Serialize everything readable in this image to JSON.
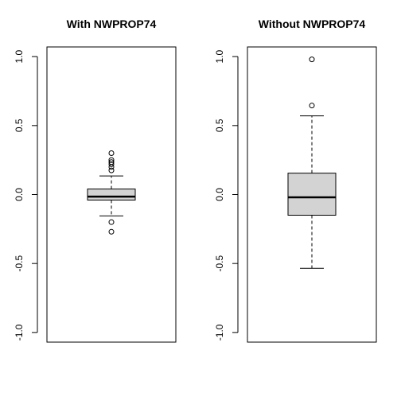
{
  "chart_data": [
    {
      "type": "box",
      "title": "With NWPROP74",
      "xlabel": "",
      "ylabel": "",
      "ylim": [
        -1.07,
        1.07
      ],
      "yticks": [
        -1.0,
        -0.5,
        0.0,
        0.5,
        1.0
      ],
      "ytick_labels": [
        "-1.0",
        "-0.5",
        "0.0",
        "0.5",
        "1.0"
      ],
      "box": {
        "whisker_low": -0.155,
        "q1": -0.04,
        "median": -0.015,
        "q3": 0.04,
        "whisker_high": 0.135,
        "outliers": [
          0.3,
          0.25,
          0.235,
          0.22,
          0.2,
          0.175,
          -0.2,
          -0.27
        ]
      },
      "fill": "#d3d3d3",
      "grid": false
    },
    {
      "type": "box",
      "title": "Without NWPROP74",
      "xlabel": "",
      "ylabel": "",
      "ylim": [
        -1.07,
        1.07
      ],
      "yticks": [
        -1.0,
        -0.5,
        0.0,
        0.5,
        1.0
      ],
      "ytick_labels": [
        "-1.0",
        "-0.5",
        "0.0",
        "0.5",
        "1.0"
      ],
      "box": {
        "whisker_low": -0.535,
        "q1": -0.15,
        "median": -0.02,
        "q3": 0.155,
        "whisker_high": 0.57,
        "outliers": [
          0.98,
          0.645
        ]
      },
      "fill": "#d3d3d3",
      "grid": false
    }
  ]
}
